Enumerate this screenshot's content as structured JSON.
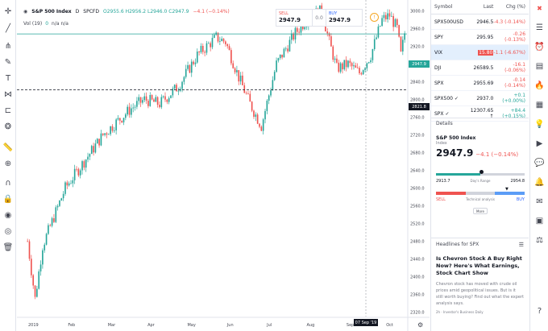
{
  "chart": {
    "symbol_title": "S&P 500 Index",
    "interval": "D",
    "exchange": "SPCFD",
    "ohlc": "O2955.6  H2956.2  L2946.0  C2947.9",
    "change": "−4.1 (−0.14%)",
    "volume_label": "Vol (19)",
    "volume_value": "0",
    "volume_extra": "n/a  n/a",
    "last_price_badge": "2947.9",
    "crosshair_price_badge": "2821.8",
    "crosshair_date_badge": "07 Sep '19",
    "price_scale": [
      "3000.0",
      "2960.0",
      "2920.0",
      "2880.0",
      "2840.0",
      "2800.0",
      "2760.0",
      "2720.0",
      "2680.0",
      "2640.0",
      "2600.0",
      "2560.0",
      "2520.0",
      "2480.0",
      "2440.0",
      "2400.0",
      "2360.0",
      "2320.0"
    ],
    "time_axis": [
      "2019",
      "Feb",
      "Mar",
      "Apr",
      "May",
      "Jun",
      "Jul",
      "Aug",
      "Sep",
      "Oct"
    ],
    "colors": {
      "up": "#26a69a",
      "down": "#ef5350",
      "last_line": "#26a69a"
    }
  },
  "trade": {
    "sell_label": "SELL",
    "sell_price": "2947.9",
    "spread": "0.0",
    "buy_label": "BUY",
    "buy_price": "2947.9"
  },
  "watchlist": {
    "headers": {
      "symbol": "Symbol",
      "last": "Last",
      "chg": "Chg (%)"
    },
    "rows": [
      {
        "symbol": "SPX500USD",
        "last": "2946.5",
        "chg": "-4.3 (-0.14%)",
        "dir": "neg"
      },
      {
        "symbol": "SPY",
        "last": "295.95",
        "chg": "-0.26 (-0.13%)",
        "dir": "neg"
      },
      {
        "symbol": "VIX",
        "last": "15.80",
        "chg": "-1.1 (-6.67%)",
        "dir": "neg"
      },
      {
        "symbol": "DJI",
        "last": "26589.5",
        "chg": "-16.1 (-0.06%)",
        "dir": "neg"
      },
      {
        "symbol": "SPX",
        "last": "2955.69",
        "chg": "-0.14 (-0.14%)",
        "dir": "neg"
      },
      {
        "symbol": "SPX500 ✓",
        "last": "2937.0",
        "chg": "+0.1 (+0.00%)",
        "dir": "pos"
      },
      {
        "symbol": "SPX ✓",
        "last": "12307.65 ↑",
        "chg": "+84.4 (+0.15%)",
        "dir": "pos"
      }
    ]
  },
  "details": {
    "section_title": "Details",
    "name": "S&P 500 Index",
    "type": "Index",
    "price": "2947.9",
    "change": "−4.1 (−0.14%)",
    "range_low": "2913.7",
    "range_high": "2954.8",
    "range_caption": "Day's Range",
    "ta_sell": "SELL",
    "ta_buy": "BUY",
    "ta_caption": "Technical analysis",
    "more_label": "More",
    "colors": {
      "ta_sell": "#ef5350",
      "ta_neutral": "#d1d4dc",
      "ta_buy": "#5b9cf6"
    }
  },
  "headlines": {
    "section_title": "Headlines for SPX",
    "headline": "Is Chevron Stock A Buy Right Now? Here's What Earnings, Stock Chart Show",
    "snippet": "Chevron stock has moved with crude oil prices amid geopolitical issues. But is it still worth buying? Find out what the expert analysis says.",
    "source": "2h · Investor's Business Daily"
  }
}
